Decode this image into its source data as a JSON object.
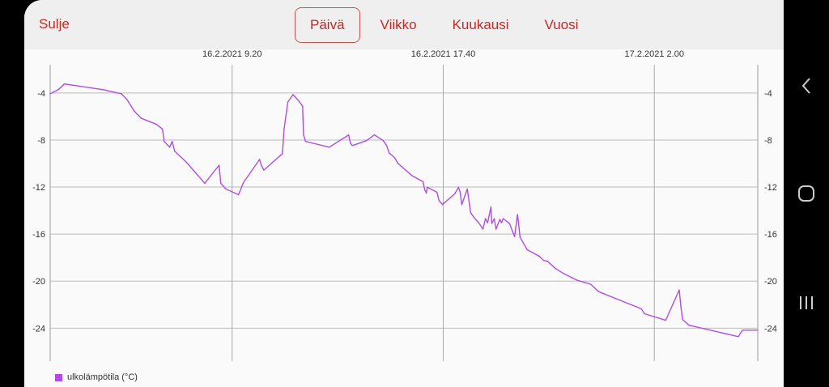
{
  "header": {
    "close_label": "Sulje",
    "tabs": [
      {
        "label": "Päivä",
        "active": true
      },
      {
        "label": "Viikko",
        "active": false
      },
      {
        "label": "Kuukausi",
        "active": false
      },
      {
        "label": "Vuosi",
        "active": false
      }
    ],
    "accent_color": "#c62828"
  },
  "navbar": {
    "icons": [
      "back-icon",
      "home-icon",
      "recents-icon"
    ]
  },
  "chart_data": {
    "type": "line",
    "title": "",
    "xlabel": "",
    "ylabel": "",
    "grid": true,
    "legend_placement": "bottom-left",
    "xlim": [
      "16.2.2021 2:09",
      "17.2.2021 6:05"
    ],
    "ylim": [
      -26.8,
      -1.6
    ],
    "x_ticks": [
      "16.2.2021 9.20",
      "16.2.2021 17.40",
      "17.2.2021 2.00"
    ],
    "y_ticks": [
      -4,
      -8,
      -12,
      -16,
      -20,
      -24
    ],
    "series": [
      {
        "name": "ulkolämpötila (°C)",
        "color": "#b04de0",
        "points": [
          [
            "16.2.2021 2:09",
            -4.07
          ],
          [
            "16.2.2021 2:28",
            -3.72
          ],
          [
            "16.2.2021 2:43",
            -3.23
          ],
          [
            "16.2.2021 4:15",
            -3.72
          ],
          [
            "16.2.2021 4:58",
            -4.07
          ],
          [
            "16.2.2021 5:11",
            -4.56
          ],
          [
            "16.2.2021 5:28",
            -5.54
          ],
          [
            "16.2.2021 5:45",
            -6.16
          ],
          [
            "16.2.2021 6:20",
            -6.65
          ],
          [
            "16.2.2021 6:35",
            -7.07
          ],
          [
            "16.2.2021 6:39",
            -8.12
          ],
          [
            "16.2.2021 6:52",
            -8.61
          ],
          [
            "16.2.2021 6:58",
            -8.12
          ],
          [
            "16.2.2021 7:04",
            -8.95
          ],
          [
            "16.2.2021 7:31",
            -9.86
          ],
          [
            "16.2.2021 8:00",
            -11.05
          ],
          [
            "16.2.2021 8:15",
            -11.68
          ],
          [
            "16.2.2021 8:49",
            -10.14
          ],
          [
            "16.2.2021 8:53",
            -11.68
          ],
          [
            "16.2.2021 9:05",
            -12.16
          ],
          [
            "16.2.2021 9:35",
            -12.65
          ],
          [
            "16.2.2021 9:47",
            -11.61
          ],
          [
            "16.2.2021 10:25",
            -9.65
          ],
          [
            "16.2.2021 10:29",
            -10.14
          ],
          [
            "16.2.2021 10:35",
            -10.56
          ],
          [
            "16.2.2021 11:19",
            -9.16
          ],
          [
            "16.2.2021 11:23",
            -7.07
          ],
          [
            "16.2.2021 11:32",
            -4.77
          ],
          [
            "16.2.2021 11:44",
            -4.14
          ],
          [
            "16.2.2021 11:57",
            -4.63
          ],
          [
            "16.2.2021 12:07",
            -5.12
          ],
          [
            "16.2.2021 12:09",
            -7.56
          ],
          [
            "16.2.2021 12:14",
            -8.12
          ],
          [
            "16.2.2021 13:10",
            -8.61
          ],
          [
            "16.2.2021 13:56",
            -7.56
          ],
          [
            "16.2.2021 14:00",
            -8.26
          ],
          [
            "16.2.2021 14:05",
            -8.47
          ],
          [
            "16.2.2021 14:38",
            -8.05
          ],
          [
            "16.2.2021 14:57",
            -7.56
          ],
          [
            "16.2.2021 15:18",
            -8.05
          ],
          [
            "16.2.2021 15:26",
            -8.47
          ],
          [
            "16.2.2021 15:32",
            -9.09
          ],
          [
            "16.2.2021 15:45",
            -9.51
          ],
          [
            "16.2.2021 15:53",
            -10.0
          ],
          [
            "16.2.2021 16:27",
            -11.05
          ],
          [
            "16.2.2021 16:52",
            -11.54
          ],
          [
            "16.2.2021 16:56",
            -12.23
          ],
          [
            "16.2.2021 17:00",
            -12.51
          ],
          [
            "16.2.2021 17:02",
            -12.02
          ],
          [
            "16.2.2021 17:25",
            -12.44
          ],
          [
            "16.2.2021 17:30",
            -13.14
          ],
          [
            "16.2.2021 17:38",
            -13.49
          ],
          [
            "16.2.2021 18:07",
            -12.58
          ],
          [
            "16.2.2021 18:16",
            -12.02
          ],
          [
            "16.2.2021 18:20",
            -12.44
          ],
          [
            "16.2.2021 18:24",
            -13.49
          ],
          [
            "16.2.2021 18:37",
            -12.16
          ],
          [
            "16.2.2021 18:45",
            -14.19
          ],
          [
            "16.2.2021 18:55",
            -14.68
          ],
          [
            "16.2.2021 19:04",
            -15.03
          ],
          [
            "16.2.2021 19:14",
            -15.58
          ],
          [
            "16.2.2021 19:20",
            -14.68
          ],
          [
            "16.2.2021 19:25",
            -15.03
          ],
          [
            "16.2.2021 19:33",
            -13.7
          ],
          [
            "16.2.2021 19:35",
            -15.1
          ],
          [
            "16.2.2021 19:41",
            -14.68
          ],
          [
            "16.2.2021 19:45",
            -15.58
          ],
          [
            "16.2.2021 19:54",
            -14.75
          ],
          [
            "16.2.2021 19:58",
            -15.03
          ],
          [
            "16.2.2021 20:02",
            -14.68
          ],
          [
            "16.2.2021 20:17",
            -15.1
          ],
          [
            "16.2.2021 20:29",
            -16.21
          ],
          [
            "16.2.2021 20:36",
            -14.33
          ],
          [
            "16.2.2021 20:42",
            -16.28
          ],
          [
            "16.2.2021 20:59",
            -17.33
          ],
          [
            "16.2.2021 21:28",
            -17.89
          ],
          [
            "16.2.2021 21:38",
            -18.24
          ],
          [
            "16.2.2021 21:47",
            -18.31
          ],
          [
            "16.2.2021 22:06",
            -18.93
          ],
          [
            "16.2.2021 22:25",
            -19.35
          ],
          [
            "16.2.2021 22:56",
            -19.91
          ],
          [
            "16.2.2021 23:29",
            -20.26
          ],
          [
            "16.2.2021 23:48",
            -20.89
          ],
          [
            "17.2.2021 1:29",
            -22.35
          ],
          [
            "17.2.2021 1:37",
            -22.77
          ],
          [
            "17.2.2021 2:27",
            -23.33
          ],
          [
            "17.2.2021 2:59",
            -20.75
          ],
          [
            "17.2.2021 3:03",
            -22.21
          ],
          [
            "17.2.2021 3:07",
            -23.26
          ],
          [
            "17.2.2021 3:22",
            -23.75
          ],
          [
            "17.2.2021 5:19",
            -24.72
          ],
          [
            "17.2.2021 5:29",
            -24.17
          ],
          [
            "17.2.2021 6:05",
            -24.17
          ]
        ]
      }
    ]
  }
}
